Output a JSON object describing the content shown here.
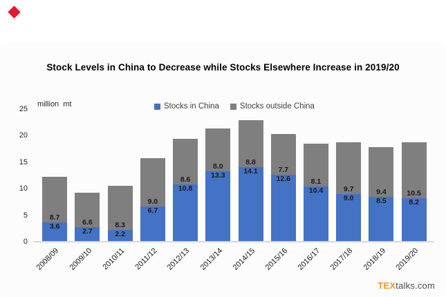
{
  "branding": {
    "logo_tex": "TEX",
    "logo_rest": "talks.com",
    "logo_tex_color": "#F7941E",
    "logo_rest_color": "#4D4D4D",
    "corner_icon": "red-diamond",
    "corner_icon_color": "#E8192C"
  },
  "chart_data": {
    "type": "bar",
    "stacked": true,
    "title": "Stock Levels in China to Decrease while Stocks Elsewhere Increase in 2019/20",
    "ylabel": "million  mt",
    "xlabel": "",
    "ylim": [
      0,
      25
    ],
    "yticks": [
      0,
      5,
      10,
      15,
      20,
      25
    ],
    "grid": false,
    "legend_position": "top-center",
    "axis_line_color": "#D9D9D9",
    "categories": [
      "2008/09",
      "2009/10",
      "2010/11",
      "2011/12",
      "2012/13",
      "2013/14",
      "2014/15",
      "2015/16",
      "2016/17",
      "2017/18",
      "2018/19",
      "2019/20"
    ],
    "series": [
      {
        "name": "Stocks in China",
        "color": "#4472C4",
        "values": [
          3.6,
          2.7,
          2.2,
          6.7,
          10.8,
          13.3,
          14.1,
          12.6,
          10.4,
          9.0,
          8.5,
          8.2
        ]
      },
      {
        "name": "Stocks outside China",
        "color": "#7F7F7F",
        "values": [
          8.7,
          6.6,
          8.3,
          9.0,
          8.6,
          8.0,
          8.8,
          7.7,
          8.1,
          9.7,
          9.4,
          10.5
        ]
      }
    ]
  }
}
